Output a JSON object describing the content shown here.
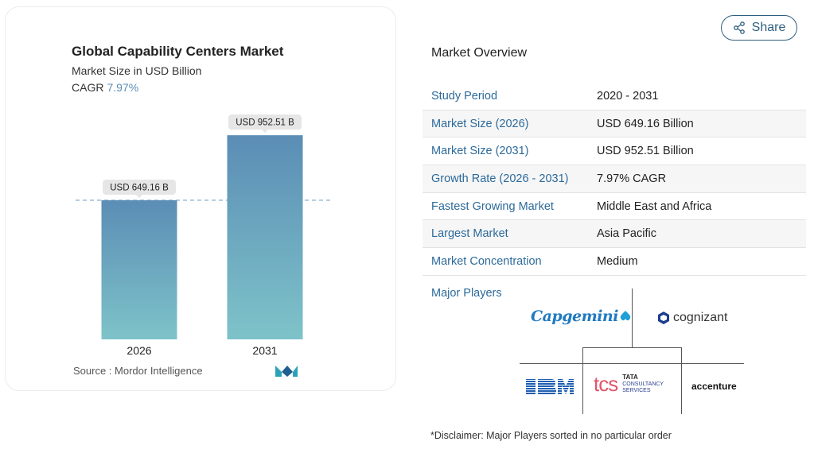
{
  "chart": {
    "title": "Global Capability Centers Market",
    "subtitle": "Market Size in USD Billion",
    "cagr_label": "CAGR",
    "cagr_value": "7.97%",
    "source": "Source :  Mordor Intelligence"
  },
  "chart_data": {
    "type": "bar",
    "categories": [
      "2026",
      "2031"
    ],
    "values": [
      649.16,
      952.51
    ],
    "data_labels": [
      "USD 649.16 B",
      "USD 952.51 B"
    ],
    "title": "Global Capability Centers Market",
    "subtitle": "Market Size in USD Billion",
    "xlabel": "",
    "ylabel": "",
    "ylim": [
      0,
      1000
    ],
    "colors": {
      "bar_top": "#5b8db5",
      "bar_bottom": "#7ec3c9",
      "reference_line": "#7aa3c4"
    },
    "grid": false,
    "legend": "none"
  },
  "share": {
    "label": "Share"
  },
  "overview": {
    "heading": "Market Overview",
    "rows": [
      {
        "label": "Study Period",
        "value": "2020 - 2031"
      },
      {
        "label": "Market Size (2026)",
        "value": "USD 649.16 Billion"
      },
      {
        "label": "Market Size (2031)",
        "value": "USD 952.51 Billion"
      },
      {
        "label": "Growth Rate (2026 - 2031)",
        "value": "7.97% CAGR"
      },
      {
        "label": "Fastest Growing Market",
        "value": "Middle East and Africa"
      },
      {
        "label": "Largest Market",
        "value": "Asia Pacific"
      },
      {
        "label": "Market Concentration",
        "value": "Medium"
      }
    ]
  },
  "players": {
    "label": "Major Players",
    "logos": {
      "capgemini": "Capgemini",
      "cognizant": "cognizant",
      "ibm": "IBM",
      "tcs_mark": "tcs",
      "tcs_line1": "TATA",
      "tcs_line2": "CONSULTANCY",
      "tcs_line3": "SERVICES",
      "accenture": "accenture"
    }
  },
  "disclaimer": "*Disclaimer: Major Players sorted in no particular order",
  "colors": {
    "accent": "#2c6a9a",
    "share_border": "#2f5f7f"
  }
}
